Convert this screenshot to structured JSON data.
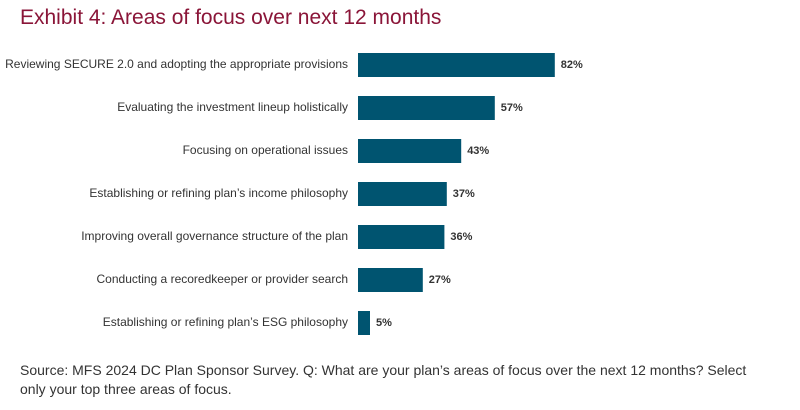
{
  "chart_data": {
    "type": "bar",
    "orientation": "horizontal",
    "title": "Exhibit 4: Areas of focus over next 12 months",
    "categories": [
      "Reviewing SECURE 2.0 and adopting the appropriate provisions",
      "Evaluating the investment lineup holistically",
      "Focusing on operational issues",
      "Establishing or refining plan’s income philosophy",
      "Improving overall governance structure of the plan",
      "Conducting a recoredkeeper or provider search",
      "Establishing or refining plan’s ESG philosophy"
    ],
    "values": [
      82,
      57,
      43,
      37,
      36,
      27,
      5
    ],
    "value_labels": [
      "82%",
      "57%",
      "43%",
      "37%",
      "36%",
      "27%",
      "5%"
    ],
    "color": "#005470",
    "source": "Source: MFS 2024 DC Plan Sponsor Survey. Q: What are your plan’s areas of focus over the next 12 months? Select only your top three areas of focus."
  }
}
